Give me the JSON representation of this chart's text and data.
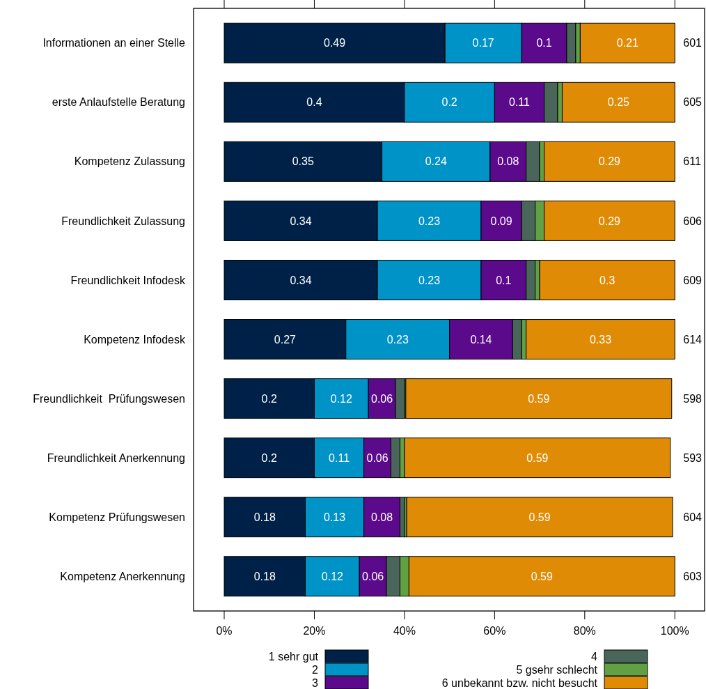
{
  "chart_data": {
    "type": "bar",
    "orientation": "horizontal",
    "stacked": true,
    "categories": [
      "Informationen an einer Stelle",
      "erste Anlaufstelle Beratung",
      "Kompetenz Zulassung",
      "Freundlichkeit Zulassung",
      "Freundlichkeit Infodesk",
      "Kompetenz Infodesk",
      "Freundlichkeit  Prüfungswesen",
      "Freundlichkeit Anerkennung",
      "Kompetenz Prüfungswesen",
      "Kompetenz Anerkennung"
    ],
    "series": [
      {
        "name": "1 sehr gut",
        "color": "#002147",
        "values": [
          0.49,
          0.4,
          0.35,
          0.34,
          0.34,
          0.27,
          0.2,
          0.2,
          0.18,
          0.18
        ],
        "value_labels": [
          "0.49",
          "0.4",
          "0.35",
          "0.34",
          "0.34",
          "0.27",
          "0.2",
          "0.2",
          "0.18",
          "0.18"
        ]
      },
      {
        "name": "2",
        "color": "#0093c8",
        "values": [
          0.17,
          0.2,
          0.24,
          0.23,
          0.23,
          0.23,
          0.12,
          0.11,
          0.13,
          0.12
        ],
        "value_labels": [
          "0.17",
          "0.2",
          "0.24",
          "0.23",
          "0.23",
          "0.23",
          "0.12",
          "0.11",
          "0.13",
          "0.12"
        ]
      },
      {
        "name": "3",
        "color": "#5b0a8c",
        "values": [
          0.1,
          0.11,
          0.08,
          0.09,
          0.1,
          0.14,
          0.06,
          0.06,
          0.08,
          0.06
        ],
        "value_labels": [
          "0.1",
          "0.11",
          "0.08",
          "0.09",
          "0.1",
          "0.14",
          "0.06",
          "0.06",
          "0.08",
          "0.06"
        ]
      },
      {
        "name": "4",
        "color": "#4a665a",
        "values": [
          0.02,
          0.03,
          0.03,
          0.03,
          0.02,
          0.02,
          0.02,
          0.02,
          0.01,
          0.03
        ]
      },
      {
        "name": "5 gsehr schlecht",
        "color": "#62a143",
        "values": [
          0.01,
          0.01,
          0.01,
          0.02,
          0.01,
          0.01,
          0.003,
          0.01,
          0.005,
          0.02
        ]
      },
      {
        "name": "6 unbekannt bzw. nicht besucht",
        "color": "#e08b05",
        "values": [
          0.21,
          0.25,
          0.29,
          0.29,
          0.3,
          0.33,
          0.59,
          0.59,
          0.59,
          0.59
        ],
        "value_labels": [
          "0.21",
          "0.25",
          "0.29",
          "0.29",
          "0.3",
          "0.33",
          "0.59",
          "0.59",
          "0.59",
          "0.59"
        ]
      }
    ],
    "xlim": [
      -0.068,
      1.066
    ],
    "xticks": [
      {
        "value": 0,
        "label": "0%"
      },
      {
        "value": 0.2,
        "label": "20%"
      },
      {
        "value": 0.4,
        "label": "40%"
      },
      {
        "value": 0.6,
        "label": "60%"
      },
      {
        "value": 0.8,
        "label": "80%"
      },
      {
        "value": 1,
        "label": "100%"
      }
    ],
    "annotations": [
      "601",
      "605",
      "611",
      "606",
      "609",
      "614",
      "598",
      "593",
      "604",
      "603"
    ],
    "legend": "bottom"
  }
}
